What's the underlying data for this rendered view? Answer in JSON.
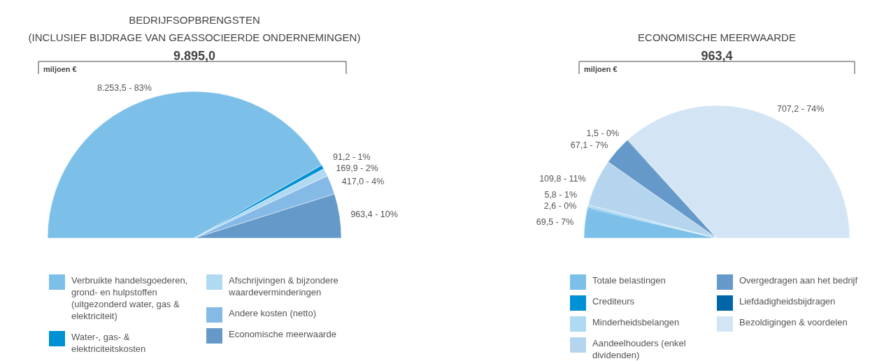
{
  "chart_data": [
    {
      "type": "pie",
      "title": "BEDRIJFSOPBRENGSTEN\n(INCLUSIEF BIJDRAGE VAN GEASSOCIEERDE ONDERNEMINGEN)",
      "subtitle": "9.895,0",
      "annotations": [
        "miljoen €"
      ],
      "legend": "bottom",
      "categories": [
        "Verbruikte handelsgoederen, grond- en hulpstoffen (uitgezonderd water, gas & elektriciteit)",
        "Water-, gas- & elektriciteitskosten",
        "Afschrijvingen & bijzondere waardeverminderingen",
        "Andere kosten (netto)",
        "Economische meerwaarde"
      ],
      "values": [
        8253.5,
        91.2,
        169.9,
        417.0,
        963.4
      ],
      "value_labels": [
        "8.253,5 - 83%",
        "91,2 - 1%",
        "169,9 - 2%",
        "417,0 - 4%",
        "963,4 - 10%"
      ],
      "colors": [
        "#7cc0ea",
        "#0090d4",
        "#b0d9f2",
        "#85b9e6",
        "#6499c9"
      ]
    },
    {
      "type": "pie",
      "title": "ECONOMISCHE MEERWAARDE",
      "subtitle": "963,4",
      "annotations": [
        "miljoen €"
      ],
      "legend": "bottom",
      "categories": [
        "Totale belastingen",
        "Crediteurs",
        "Minderheidsbelangen",
        "Aandeelhouders (enkel dividenden)",
        "Overgedragen aan het bedrijf",
        "Liefdadigheidsbijdragen",
        "Bezoldigingen & voordelen"
      ],
      "values": [
        69.5,
        2.6,
        5.8,
        109.8,
        67.1,
        1.5,
        707.2
      ],
      "value_labels": [
        "69,5 - 7%",
        "2,6 - 0%",
        "5,8 - 1%",
        "109,8 - 11%",
        "67,1 - 7%",
        "1,5 - 0%",
        "707,2 - 74%"
      ],
      "colors": [
        "#7cc0ea",
        "#0090d4",
        "#b0d9f2",
        "#b5d5ee",
        "#6499c9",
        "#0066a6",
        "#d3e5f5"
      ]
    }
  ]
}
